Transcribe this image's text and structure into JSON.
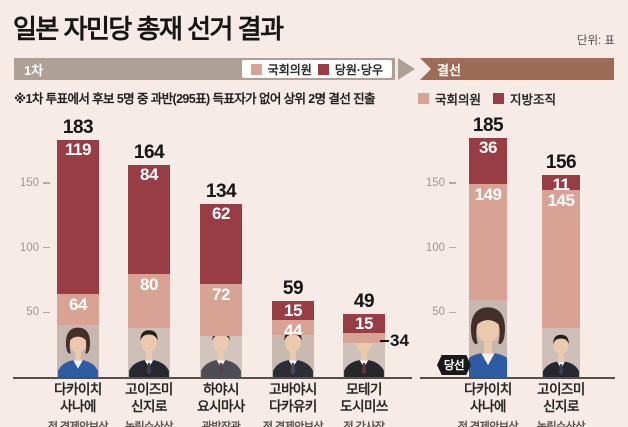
{
  "meta": {
    "title": "일본 자민당 총재 선거 결과",
    "unit": "단위: 표",
    "note": "※1차 투표에서 후보 5명 중 과반(295표) 득표자가 없어 상위 2명 결선 진출"
  },
  "bands": {
    "round1": "1차",
    "runoff": "결선"
  },
  "winner_badge": "당선",
  "colors": {
    "background": "#f7ebe7",
    "band_round1": "#aea094",
    "band_runoff": "#9e6b54",
    "diet_pink": "#d8a294",
    "party_red": "#993d45",
    "axis_text": "#9d9791",
    "baseline": "#56504b",
    "badge_black": "#191919"
  },
  "legends": {
    "round1": [
      {
        "label": "국회의원",
        "color": "#d8a294"
      },
      {
        "label": "당원·당우",
        "color": "#993d45"
      }
    ],
    "runoff": [
      {
        "label": "국회의원",
        "color": "#d8a294"
      },
      {
        "label": "지방조직",
        "color": "#993d45"
      }
    ]
  },
  "chart_data": [
    {
      "type": "bar",
      "stacked": true,
      "stage": "1차",
      "title": "1차",
      "categories": [
        "다카이치 사나에",
        "고이즈미 신지로",
        "하야시 요시마사",
        "고바야시 다카유키",
        "모테기 도시미쓰"
      ],
      "name_lines": [
        [
          "다카이치",
          "사나에"
        ],
        [
          "고이즈미",
          "신지로"
        ],
        [
          "하야시",
          "요시마사"
        ],
        [
          "고바야시",
          "다카유키"
        ],
        [
          "모테기",
          "도시미쓰"
        ]
      ],
      "captions": [
        "전 경제안보상",
        "농림수산상",
        "관방장관",
        "전 경제안보상",
        "전 간사장"
      ],
      "series": [
        {
          "name": "국회의원",
          "color": "#d8a294",
          "values": [
            64,
            80,
            72,
            44,
            34
          ]
        },
        {
          "name": "당원·당우",
          "color": "#993d45",
          "values": [
            119,
            84,
            62,
            15,
            15
          ]
        }
      ],
      "totals": [
        183,
        164,
        134,
        59,
        49
      ],
      "ylim": [
        0,
        200
      ],
      "yticks": [
        50,
        100,
        150
      ],
      "grid": false,
      "diet_label_outside": [
        false,
        false,
        false,
        false,
        true
      ],
      "avatars": [
        {
          "style": "woman",
          "hair": "#43302a",
          "suit": "#2d5ba4",
          "bg": "#c6b7b2",
          "tie": "none"
        },
        {
          "style": "man",
          "hair": "#241d18",
          "suit": "#252830",
          "bg": "#cec0b8",
          "tie": "#3a3f55"
        },
        {
          "style": "man",
          "hair": "#38312b",
          "suit": "#4d4d53",
          "bg": "#d2c5bd",
          "tie": "#57424a"
        },
        {
          "style": "man",
          "hair": "#221c17",
          "suit": "#2b2e36",
          "bg": "#c9bab1",
          "tie": "#444b61"
        },
        {
          "style": "man",
          "hair": "#4c4742",
          "suit": "#26262b",
          "bg": "#cfc2ba",
          "tie": "#5b3440"
        }
      ]
    },
    {
      "type": "bar",
      "stacked": true,
      "stage": "결선",
      "title": "결선",
      "categories": [
        "다카이치 사나에",
        "고이즈미 신지로"
      ],
      "name_lines": [
        [
          "다카이치",
          "사나에"
        ],
        [
          "고이즈미",
          "신지로"
        ]
      ],
      "captions": [
        "전 경제안보상",
        "농림수산상"
      ],
      "series": [
        {
          "name": "국회의원",
          "color": "#d8a294",
          "values": [
            149,
            145
          ]
        },
        {
          "name": "지방조직",
          "color": "#993d45",
          "values": [
            36,
            11
          ]
        }
      ],
      "totals": [
        185,
        156
      ],
      "ylim": [
        0,
        200
      ],
      "yticks": [
        50,
        100,
        150
      ],
      "grid": false,
      "diet_label_outside": [
        false,
        false
      ],
      "winner_index": 0,
      "avatars": [
        {
          "style": "woman",
          "hair": "#43302a",
          "suit": "#2d5ba4",
          "bg": "#c6b7b2",
          "tie": "none"
        },
        {
          "style": "man",
          "hair": "#241d18",
          "suit": "#252830",
          "bg": "#cec0b8",
          "tie": "#3a3f55"
        }
      ]
    }
  ]
}
